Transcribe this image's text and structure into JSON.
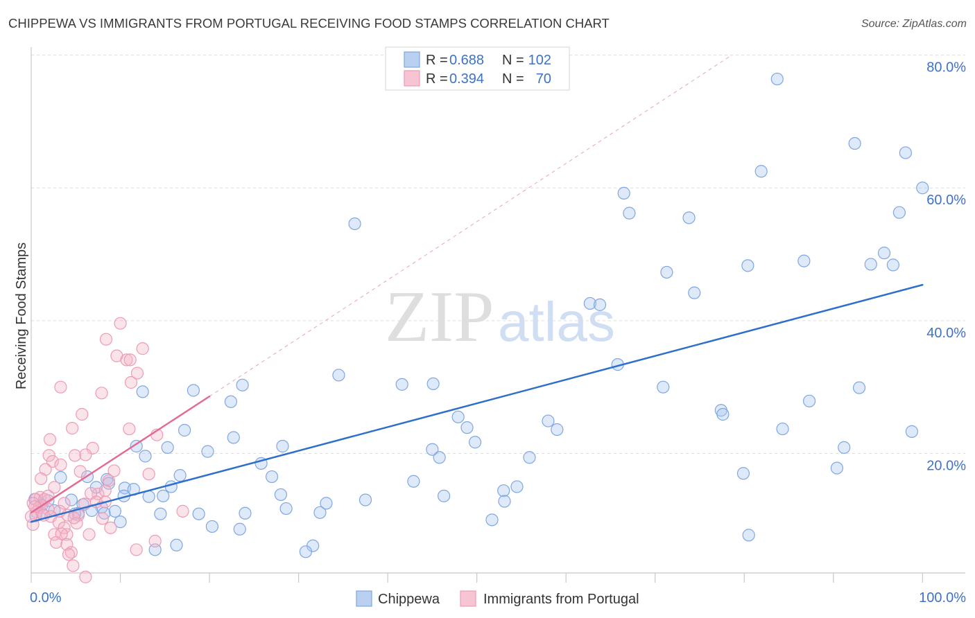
{
  "watermark": {
    "part1": "ZIP",
    "part2": "atlas"
  },
  "chart_data": {
    "type": "scatter",
    "title": "CHIPPEWA VS IMMIGRANTS FROM PORTUGAL RECEIVING FOOD STAMPS CORRELATION CHART",
    "source": "Source: ZipAtlas.com",
    "ylabel": "Receiving Food Stamps",
    "xlim": [
      0,
      104.8
    ],
    "ylim": [
      2,
      81
    ],
    "grid": true,
    "x_ticks": [
      0,
      10,
      20,
      30,
      40,
      50,
      60,
      70,
      80,
      90,
      100
    ],
    "x_tick_labels": [
      {
        "value": 0,
        "label": "0.0%"
      },
      {
        "value": 100,
        "label": "100.0%"
      }
    ],
    "y_ticks": [
      {
        "value": 80,
        "label": "80.0%"
      },
      {
        "value": 60,
        "label": "60.0%"
      },
      {
        "value": 40,
        "label": "40.0%"
      },
      {
        "value": 20,
        "label": "20.0%"
      }
    ],
    "legend_box": {
      "rows": [
        {
          "r_label": "R =",
          "r_value": "0.688",
          "n_label": "N =",
          "n_value": "102"
        },
        {
          "r_label": "R =",
          "r_value": "0.394",
          "n_label": "N =",
          "n_value": "70"
        }
      ]
    },
    "series": [
      {
        "name": "Chippewa",
        "color": "#a9c4ee",
        "edge_color": "#7fa6e3",
        "line_color": "#2f6fcc",
        "trend": {
          "x": [
            0,
            100
          ],
          "y": [
            9.7,
            45.4
          ]
        },
        "points": [
          [
            83.7,
            76.4
          ],
          [
            92.4,
            66.7
          ],
          [
            98.1,
            65.3
          ],
          [
            81.9,
            62.5
          ],
          [
            100.0,
            60.0
          ],
          [
            66.5,
            59.2
          ],
          [
            67.1,
            56.2
          ],
          [
            97.4,
            56.3
          ],
          [
            73.8,
            55.5
          ],
          [
            36.3,
            54.6
          ],
          [
            95.7,
            50.2
          ],
          [
            86.7,
            49.0
          ],
          [
            94.2,
            48.5
          ],
          [
            96.7,
            48.4
          ],
          [
            80.4,
            48.3
          ],
          [
            71.3,
            47.3
          ],
          [
            74.4,
            44.2
          ],
          [
            62.7,
            42.6
          ],
          [
            63.8,
            42.4
          ],
          [
            65.8,
            33.4
          ],
          [
            34.5,
            31.8
          ],
          [
            23.7,
            30.3
          ],
          [
            41.6,
            30.4
          ],
          [
            45.1,
            30.5
          ],
          [
            70.9,
            30.0
          ],
          [
            92.9,
            29.9
          ],
          [
            18.2,
            29.5
          ],
          [
            12.5,
            29.3
          ],
          [
            22.4,
            27.8
          ],
          [
            87.3,
            27.9
          ],
          [
            77.4,
            26.5
          ],
          [
            77.6,
            25.9
          ],
          [
            47.9,
            25.5
          ],
          [
            58.0,
            24.9
          ],
          [
            48.9,
            23.9
          ],
          [
            59.0,
            23.6
          ],
          [
            84.3,
            23.7
          ],
          [
            98.8,
            23.3
          ],
          [
            17.2,
            23.5
          ],
          [
            22.7,
            22.4
          ],
          [
            49.8,
            21.7
          ],
          [
            28.2,
            21.1
          ],
          [
            11.8,
            21.1
          ],
          [
            15.3,
            20.9
          ],
          [
            19.8,
            20.3
          ],
          [
            45.0,
            20.6
          ],
          [
            91.2,
            20.9
          ],
          [
            12.8,
            19.6
          ],
          [
            45.8,
            19.4
          ],
          [
            55.9,
            19.4
          ],
          [
            25.8,
            18.5
          ],
          [
            90.4,
            17.8
          ],
          [
            79.9,
            17.0
          ],
          [
            16.7,
            16.7
          ],
          [
            6.3,
            16.5
          ],
          [
            3.3,
            16.4
          ],
          [
            27.0,
            16.5
          ],
          [
            42.9,
            15.8
          ],
          [
            8.5,
            16.1
          ],
          [
            54.5,
            15.0
          ],
          [
            15.7,
            15.0
          ],
          [
            8.7,
            15.5
          ],
          [
            10.5,
            14.8
          ],
          [
            11.5,
            14.6
          ],
          [
            53.0,
            14.4
          ],
          [
            7.3,
            14.9
          ],
          [
            10.4,
            13.6
          ],
          [
            13.2,
            13.5
          ],
          [
            14.8,
            13.6
          ],
          [
            28.0,
            13.8
          ],
          [
            46.3,
            13.6
          ],
          [
            37.5,
            13.0
          ],
          [
            33.1,
            12.5
          ],
          [
            4.5,
            13.0
          ],
          [
            1.9,
            12.9
          ],
          [
            53.1,
            12.8
          ],
          [
            5.8,
            12.3
          ],
          [
            28.6,
            11.7
          ],
          [
            7.9,
            11.9
          ],
          [
            6.8,
            11.4
          ],
          [
            9.4,
            11.3
          ],
          [
            5.3,
            11.0
          ],
          [
            14.5,
            10.9
          ],
          [
            18.8,
            10.9
          ],
          [
            24.0,
            11.0
          ],
          [
            32.4,
            11.1
          ],
          [
            0.5,
            10.6
          ],
          [
            51.7,
            10.0
          ],
          [
            10.0,
            9.7
          ],
          [
            20.3,
            9.0
          ],
          [
            23.4,
            8.6
          ],
          [
            80.5,
            7.7
          ],
          [
            16.3,
            6.2
          ],
          [
            31.6,
            6.1
          ],
          [
            30.8,
            5.2
          ],
          [
            13.9,
            5.5
          ],
          [
            4.9,
            10.9
          ],
          [
            2.6,
            11.4
          ],
          [
            1.2,
            11.0
          ],
          [
            0.4,
            13.1
          ],
          [
            8.2,
            11.0
          ],
          [
            1.2,
            12.2
          ]
        ]
      },
      {
        "name": "Immigrants from Portugal",
        "color": "#f4b5c8",
        "edge_color": "#ee9bb4",
        "line_color": "#e36b93",
        "extension_color": "#e8a3b8",
        "trend": {
          "x": [
            0,
            20
          ],
          "y": [
            11.1,
            28.6
          ]
        },
        "trend_extension": {
          "x": [
            20,
            78.6
          ],
          "y": [
            28.6,
            80.0
          ]
        },
        "points": [
          [
            10.0,
            39.6
          ],
          [
            8.4,
            37.2
          ],
          [
            12.5,
            35.8
          ],
          [
            9.6,
            34.7
          ],
          [
            10.7,
            34.1
          ],
          [
            11.1,
            34.1
          ],
          [
            11.9,
            32.1
          ],
          [
            11.2,
            30.7
          ],
          [
            3.3,
            30.0
          ],
          [
            7.9,
            29.1
          ],
          [
            5.7,
            25.9
          ],
          [
            4.6,
            23.8
          ],
          [
            11.0,
            23.7
          ],
          [
            14.1,
            22.8
          ],
          [
            2.1,
            22.1
          ],
          [
            6.9,
            20.8
          ],
          [
            4.9,
            19.7
          ],
          [
            6.1,
            19.8
          ],
          [
            2.0,
            19.7
          ],
          [
            2.4,
            18.8
          ],
          [
            3.3,
            18.3
          ],
          [
            1.6,
            17.6
          ],
          [
            5.5,
            17.3
          ],
          [
            9.3,
            17.4
          ],
          [
            13.2,
            16.9
          ],
          [
            1.1,
            16.2
          ],
          [
            8.7,
            15.9
          ],
          [
            2.6,
            14.9
          ],
          [
            7.5,
            13.9
          ],
          [
            8.3,
            14.4
          ],
          [
            6.7,
            14.0
          ],
          [
            1.0,
            13.4
          ],
          [
            0.5,
            13.1
          ],
          [
            0.2,
            12.5
          ],
          [
            0.9,
            11.9
          ],
          [
            1.9,
            11.6
          ],
          [
            3.7,
            12.5
          ],
          [
            7.3,
            12.7
          ],
          [
            8.3,
            12.7
          ],
          [
            3.2,
            11.3
          ],
          [
            0.6,
            11.2
          ],
          [
            1.4,
            10.7
          ],
          [
            2.2,
            10.5
          ],
          [
            5.3,
            10.7
          ],
          [
            8.0,
            10.2
          ],
          [
            17.0,
            11.3
          ],
          [
            0.2,
            9.3
          ],
          [
            3.1,
            9.6
          ],
          [
            5.1,
            9.5
          ],
          [
            3.7,
            8.8
          ],
          [
            8.9,
            8.8
          ],
          [
            2.6,
            7.8
          ],
          [
            4.0,
            7.8
          ],
          [
            3.4,
            7.9
          ],
          [
            6.5,
            7.8
          ],
          [
            2.8,
            6.6
          ],
          [
            4.0,
            6.3
          ],
          [
            13.9,
            6.8
          ],
          [
            11.8,
            5.5
          ],
          [
            4.5,
            5.1
          ],
          [
            4.2,
            4.8
          ],
          [
            4.7,
            3.1
          ],
          [
            6.1,
            1.4
          ],
          [
            6.0,
            12.4
          ],
          [
            1.5,
            13.1
          ],
          [
            0.4,
            12.0
          ],
          [
            4.1,
            10.7
          ],
          [
            4.8,
            10.3
          ],
          [
            0.0,
            10.5
          ],
          [
            1.9,
            13.6
          ]
        ]
      }
    ]
  }
}
